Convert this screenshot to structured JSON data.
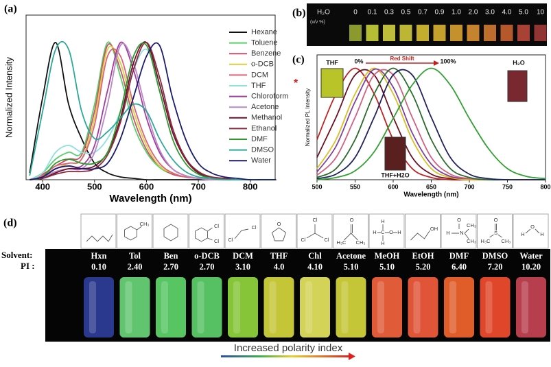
{
  "chart_data": [
    {
      "type": "line",
      "panel_label": "(a)",
      "xlabel": "Wavelength (nm)",
      "ylabel": "Normalized Intensity",
      "x": [
        375,
        400,
        425,
        450,
        475,
        500,
        525,
        550,
        575,
        600,
        625,
        650,
        675,
        700,
        725,
        750,
        775,
        800,
        825,
        850
      ],
      "xlim": [
        368,
        848
      ],
      "xticks": [
        400,
        500,
        600,
        700,
        800
      ],
      "ylim": [
        0,
        1.2
      ],
      "legend": "right",
      "series": [
        {
          "name": "Hexane",
          "color": "#111111",
          "values": [
            0.05,
            0.6,
            1.0,
            0.55,
            0.3,
            0.12,
            0.05,
            0.02,
            0.01,
            0,
            0,
            0,
            0,
            0,
            0,
            0,
            0,
            0,
            0,
            0
          ]
        },
        {
          "name": "Toluene",
          "color": "#55d06a",
          "values": [
            0,
            0.05,
            0.15,
            0.2,
            0.2,
            0.55,
            1.0,
            0.75,
            0.4,
            0.2,
            0.09,
            0.04,
            0.02,
            0.01,
            0,
            0,
            0,
            0,
            0,
            0
          ]
        },
        {
          "name": "Benzene",
          "color": "#c8506e",
          "values": [
            0,
            0.04,
            0.1,
            0.15,
            0.18,
            0.5,
            0.98,
            0.8,
            0.45,
            0.22,
            0.1,
            0.04,
            0.02,
            0.01,
            0,
            0,
            0,
            0,
            0,
            0
          ]
        },
        {
          "name": "o-DCB",
          "color": "#d8d040",
          "values": [
            0,
            0.03,
            0.08,
            0.12,
            0.15,
            0.45,
            0.95,
            0.85,
            0.5,
            0.25,
            0.1,
            0.05,
            0.02,
            0.01,
            0,
            0,
            0,
            0,
            0,
            0
          ]
        },
        {
          "name": "DCM",
          "color": "#e0607a",
          "values": [
            0,
            0.03,
            0.1,
            0.12,
            0.15,
            0.4,
            0.9,
            0.9,
            0.55,
            0.28,
            0.12,
            0.05,
            0.02,
            0.01,
            0,
            0,
            0,
            0,
            0,
            0
          ]
        },
        {
          "name": "THF",
          "color": "#8ee0e0",
          "values": [
            0,
            0.05,
            0.2,
            0.25,
            0.2,
            0.2,
            0.3,
            0.5,
            0.8,
            0.95,
            0.7,
            0.35,
            0.15,
            0.05,
            0.02,
            0,
            0,
            0,
            0,
            0
          ]
        },
        {
          "name": "Chloroform",
          "color": "#a03c9c",
          "values": [
            0,
            0.02,
            0.08,
            0.1,
            0.1,
            0.25,
            0.65,
            1.0,
            0.8,
            0.45,
            0.2,
            0.08,
            0.03,
            0.01,
            0,
            0,
            0,
            0,
            0,
            0
          ]
        },
        {
          "name": "Acetone",
          "color": "#b888c8",
          "values": [
            0,
            0.02,
            0.06,
            0.08,
            0.08,
            0.2,
            0.55,
            0.98,
            0.85,
            0.5,
            0.22,
            0.08,
            0.03,
            0.01,
            0,
            0,
            0,
            0,
            0,
            0
          ]
        },
        {
          "name": "Methanol",
          "color": "#6e1030",
          "values": [
            0,
            0.01,
            0.05,
            0.08,
            0.08,
            0.1,
            0.2,
            0.45,
            0.85,
            1.0,
            0.7,
            0.35,
            0.15,
            0.05,
            0.02,
            0.01,
            0,
            0,
            0,
            0
          ]
        },
        {
          "name": "Ethanol",
          "color": "#8a2a3a",
          "values": [
            0,
            0.01,
            0.04,
            0.06,
            0.06,
            0.08,
            0.18,
            0.42,
            0.8,
            1.0,
            0.75,
            0.38,
            0.16,
            0.06,
            0.02,
            0.01,
            0,
            0,
            0,
            0
          ]
        },
        {
          "name": "DMF",
          "color": "#2a9a2a",
          "values": [
            0,
            0.02,
            0.12,
            0.15,
            0.12,
            0.12,
            0.2,
            0.5,
            0.9,
            0.98,
            0.65,
            0.3,
            0.12,
            0.04,
            0.01,
            0,
            0,
            0,
            0,
            0
          ]
        },
        {
          "name": "DMSO",
          "color": "#2aa898",
          "values": [
            0.03,
            0.5,
            0.95,
            0.95,
            0.5,
            0.3,
            0.35,
            0.45,
            0.55,
            0.5,
            0.3,
            0.15,
            0.06,
            0.02,
            0.01,
            0,
            0,
            0,
            0,
            0
          ]
        },
        {
          "name": "Water",
          "color": "#1a1a70",
          "values": [
            0,
            0.02,
            0.08,
            0.1,
            0.08,
            0.08,
            0.12,
            0.3,
            0.6,
            0.9,
            0.98,
            0.6,
            0.3,
            0.12,
            0.05,
            0.02,
            0.01,
            0,
            0,
            0
          ]
        }
      ]
    },
    {
      "type": "line",
      "panel_label": "(c)",
      "xlabel": "Wavelength (nm)",
      "ylabel": "Normalized PL Intensity",
      "x": [
        500,
        525,
        550,
        575,
        600,
        625,
        650,
        675,
        700,
        725,
        750,
        775,
        800
      ],
      "xlim": [
        500,
        800
      ],
      "xticks": [
        500,
        550,
        600,
        650,
        700,
        750,
        800
      ],
      "ylim": [
        0,
        1.12
      ],
      "annotations": [
        "THF",
        "0%",
        "Red Shift",
        "100%",
        "H₂O",
        "THF+H2O"
      ],
      "series": [
        {
          "color": "#c02020",
          "values": [
            0.36,
            0.77,
            1,
            0.77,
            0.36,
            0.1,
            0.02,
            0,
            0,
            0,
            0,
            0,
            0
          ]
        },
        {
          "color": "#6a1020",
          "values": [
            0.2,
            0.56,
            0.94,
            0.94,
            0.56,
            0.2,
            0.05,
            0.01,
            0,
            0,
            0,
            0,
            0
          ]
        },
        {
          "color": "#d8c020",
          "values": [
            0.1,
            0.36,
            0.77,
            1,
            0.77,
            0.36,
            0.1,
            0.02,
            0,
            0,
            0,
            0,
            0
          ]
        },
        {
          "color": "#8040a0",
          "values": [
            0.07,
            0.3,
            0.7,
            0.99,
            0.83,
            0.42,
            0.14,
            0.03,
            0.01,
            0,
            0,
            0,
            0
          ]
        },
        {
          "color": "#d06080",
          "values": [
            0.04,
            0.2,
            0.56,
            0.94,
            0.94,
            0.56,
            0.2,
            0.05,
            0.01,
            0,
            0,
            0,
            0
          ]
        },
        {
          "color": "#2a6a2a",
          "values": [
            0.02,
            0.1,
            0.36,
            0.77,
            1,
            0.77,
            0.36,
            0.1,
            0.02,
            0,
            0,
            0,
            0
          ]
        },
        {
          "color": "#202060",
          "values": [
            0.01,
            0.05,
            0.2,
            0.56,
            0.94,
            0.94,
            0.56,
            0.2,
            0.05,
            0.01,
            0,
            0,
            0
          ]
        },
        {
          "color": "#30a030",
          "values": [
            0,
            0.02,
            0.08,
            0.25,
            0.55,
            0.85,
            1,
            0.85,
            0.55,
            0.28,
            0.1,
            0.03,
            0.01
          ]
        }
      ]
    }
  ],
  "marker": "*",
  "panel_b": {
    "label": "(b)",
    "title": "H₂O",
    "unit": "(v/v %)",
    "fractions": [
      "0",
      "0.1",
      "0.3",
      "0.5",
      "0.7",
      "0.9",
      "1.0",
      "2.0",
      "3.0",
      "4.0",
      "5.0",
      "10"
    ]
  },
  "panel_d": {
    "label": "(d)",
    "row_labels": [
      "Solvent:",
      "PI :"
    ],
    "caption": "Increased polarity index",
    "solvents": [
      {
        "name": "Hxn",
        "pi": "0.10",
        "atoms": []
      },
      {
        "name": "Tol",
        "pi": "2.40",
        "atoms": [
          "CH₃"
        ]
      },
      {
        "name": "Ben",
        "pi": "2.70",
        "atoms": []
      },
      {
        "name": "o-DCB",
        "pi": "2.70",
        "atoms": [
          "Cl",
          "Cl"
        ]
      },
      {
        "name": "DCM",
        "pi": "3.10",
        "atoms": [
          "Cl",
          "Cl"
        ]
      },
      {
        "name": "THF",
        "pi": "4.0",
        "atoms": [
          "O"
        ]
      },
      {
        "name": "Chl",
        "pi": "4.10",
        "atoms": [
          "Cl",
          "Cl",
          "Cl"
        ]
      },
      {
        "name": "Acetone",
        "pi": "5.10",
        "atoms": [
          "O",
          "H₃C",
          "CH₃"
        ]
      },
      {
        "name": "MeOH",
        "pi": "5.10",
        "atoms": [
          "H",
          "C",
          "O",
          "H",
          "H",
          "H"
        ]
      },
      {
        "name": "EtOH",
        "pi": "5.20",
        "atoms": [
          "OH"
        ]
      },
      {
        "name": "DMF",
        "pi": "6.40",
        "atoms": [
          "O",
          "H",
          "N",
          "CH₃",
          "CH₃"
        ]
      },
      {
        "name": "DMSO",
        "pi": "7.20",
        "atoms": [
          "O",
          "H₃C",
          "S",
          "CH₃"
        ]
      },
      {
        "name": "Water",
        "pi": "10.20",
        "atoms": [
          "H",
          "O",
          "H"
        ]
      }
    ]
  }
}
